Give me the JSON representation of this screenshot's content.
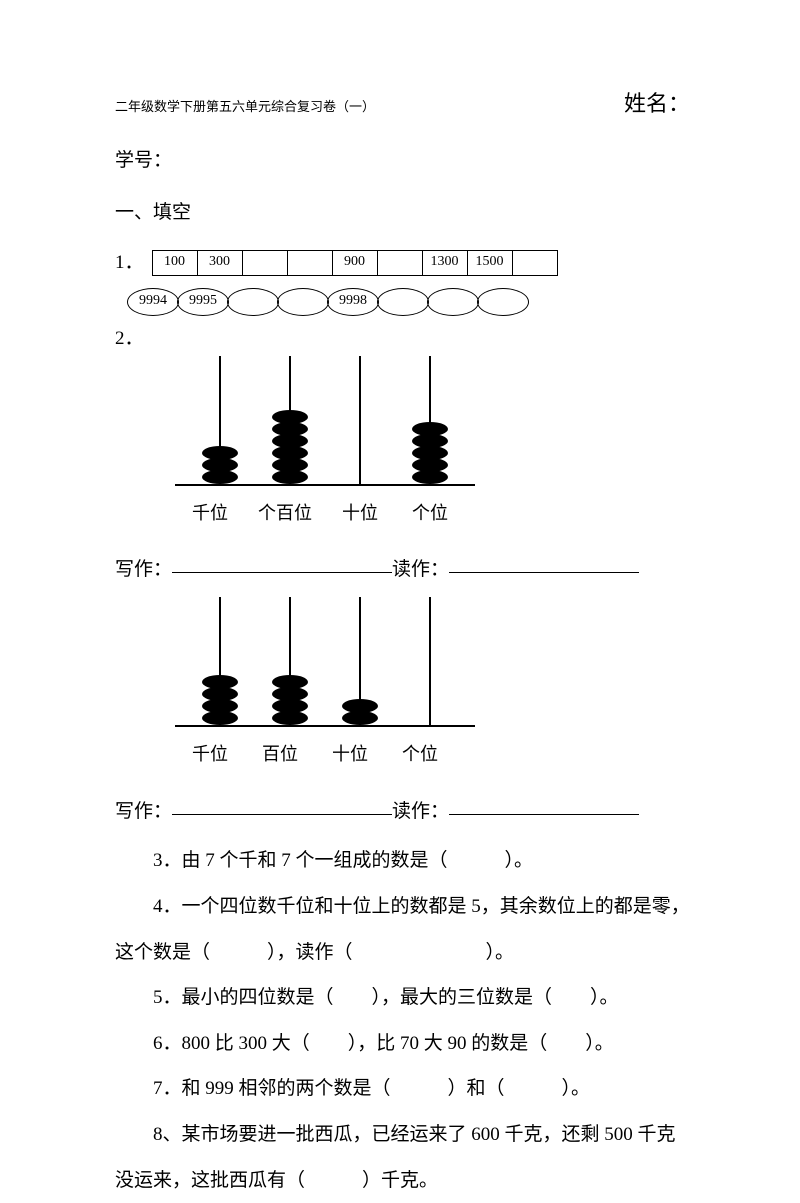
{
  "header": {
    "subtitle": "二年级数学下册第五六单元综合复习卷（一）",
    "name_label": "姓名：",
    "student_no": "学号："
  },
  "section1": {
    "title": "一、填空",
    "q1_num": "1．",
    "boxes": [
      "100",
      "300",
      "",
      "",
      "900",
      "",
      "1300",
      "1500",
      ""
    ],
    "ovals": [
      "9994",
      "9995",
      "",
      "",
      "9998",
      "",
      "",
      ""
    ],
    "q2_num": "2．",
    "abacus1": {
      "rods": [
        {
          "beads": 3,
          "color": "#000000"
        },
        {
          "beads": 6,
          "color": "#000000"
        },
        {
          "beads": 0,
          "color": "#000000"
        },
        {
          "beads": 5,
          "color": "#000000"
        }
      ],
      "labels": [
        "千位",
        "个百位",
        "十位",
        "个位"
      ],
      "rod_height": 128,
      "bead_w": 36,
      "bead_h": 14
    },
    "write_label": "写作：",
    "read_label": "读作：",
    "abacus2": {
      "rods": [
        {
          "beads": 4,
          "color": "#000000"
        },
        {
          "beads": 4,
          "color": "#000000"
        },
        {
          "beads": 2,
          "color": "#000000"
        },
        {
          "beads": 0,
          "color": "#000000"
        }
      ],
      "labels": [
        "千位",
        "百位",
        "十位",
        "个位"
      ],
      "rod_height": 128,
      "bead_w": 36,
      "bead_h": 14
    },
    "q3": "3．由 7 个千和 7 个一组成的数是（　　　）。",
    "q4": "4．一个四位数千位和十位上的数都是 5，其余数位上的都是零，这个数是（　　　），读作（　　　　　　　）。",
    "q5": "5．最小的四位数是（　　），最大的三位数是（　　）。",
    "q6": "6．800 比 300 大（　　），比 70 大 90 的数是（　　）。",
    "q7": "7．和 999 相邻的两个数是（　　　）和（　　　）。",
    "q8": "8、某市场要进一批西瓜，已经运来了 600 千克，还剩 500 千克没运来，这批西瓜有（　　　）千克。"
  },
  "style": {
    "text_color": "#000000",
    "bg_color": "#ffffff",
    "box_border": "#000000",
    "underline_color": "#000000"
  }
}
